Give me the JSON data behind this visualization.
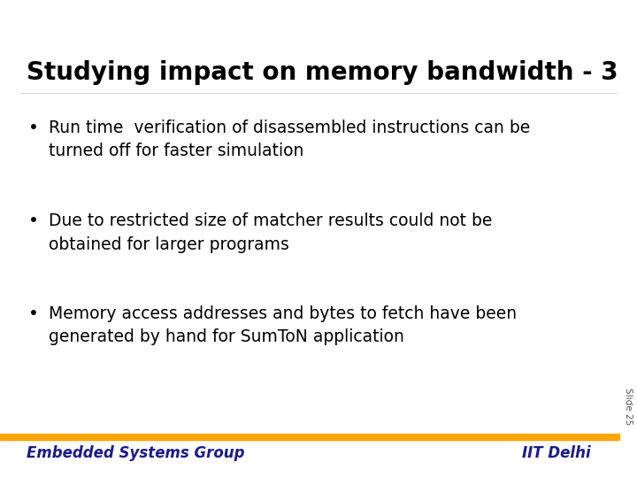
{
  "title": "Studying impact on memory bandwidth - 3",
  "title_color": "#000000",
  "title_fontsize": 20,
  "title_fontweight": "bold",
  "background_color": "#ffffff",
  "bullet_points": [
    "Run time  verification of disassembled instructions can be\nturned off for faster simulation",
    "Due to restricted size of matcher results could not be\nobtained for larger programs",
    "Memory access addresses and bytes to fetch have been\ngenerated by hand for SumToN application"
  ],
  "bullet_color": "#000000",
  "bullet_fontsize": 13.5,
  "footer_left": "Embedded Systems Group",
  "footer_right": "IIT Delhi",
  "footer_color": "#1a1a8c",
  "footer_fontsize": 12,
  "footer_fontweight": "bold",
  "footer_bar_color": "#ffa500",
  "slide_label": "Slide 25",
  "slide_label_color": "#555555",
  "slide_label_fontsize": 7.5
}
